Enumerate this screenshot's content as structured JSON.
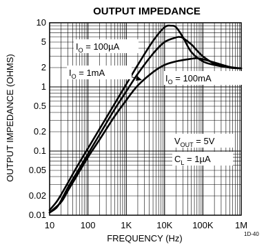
{
  "chart_data": {
    "type": "line",
    "title": "OUTPUT IMPEDANCE",
    "xlabel": "FREQUENCY (Hz)",
    "ylabel": "OUTPUT IMPEDANCE (OHMS)",
    "x_scale": "log",
    "y_scale": "log",
    "xlim": [
      10,
      1000000
    ],
    "ylim": [
      0.01,
      10
    ],
    "grid": true,
    "x_ticks": [
      "10",
      "100",
      "1K",
      "10K",
      "100K",
      "1M"
    ],
    "y_ticks": [
      "10",
      "5",
      "2",
      "1",
      "0.5",
      "0.2",
      "0.1",
      "0.05",
      "0.02",
      "0.01"
    ],
    "series": [
      {
        "name": "IO = 100µA",
        "x": [
          10,
          15,
          20,
          30,
          50,
          100,
          200,
          500,
          1000,
          2000,
          5000,
          10000,
          15000,
          20000,
          30000,
          50000,
          100000,
          200000,
          500000,
          1000000
        ],
        "y": [
          0.012,
          0.016,
          0.021,
          0.032,
          0.055,
          0.11,
          0.22,
          0.55,
          1.1,
          2.2,
          5.2,
          8.5,
          9.0,
          8.5,
          6.0,
          3.5,
          2.5,
          2.2,
          2.0,
          1.95
        ]
      },
      {
        "name": "IO = 1mA",
        "x": [
          10,
          15,
          20,
          30,
          50,
          100,
          200,
          500,
          1000,
          2000,
          5000,
          10000,
          20000,
          25000,
          30000,
          50000,
          70000,
          100000,
          200000,
          500000,
          1000000
        ],
        "y": [
          0.011,
          0.013,
          0.017,
          0.027,
          0.045,
          0.09,
          0.18,
          0.45,
          0.85,
          1.6,
          3.3,
          5.0,
          5.9,
          6.0,
          5.8,
          4.6,
          3.7,
          3.0,
          2.3,
          2.0,
          1.95
        ]
      },
      {
        "name": "IO = 100mA",
        "x": [
          10,
          20,
          30,
          50,
          100,
          200,
          500,
          1000,
          2000,
          5000,
          10000,
          20000,
          50000,
          70000,
          100000,
          200000,
          500000,
          1000000
        ],
        "y": [
          0.011,
          0.016,
          0.024,
          0.04,
          0.08,
          0.15,
          0.35,
          0.62,
          1.05,
          1.7,
          2.2,
          2.5,
          2.75,
          2.8,
          2.7,
          2.4,
          2.05,
          1.95
        ]
      }
    ],
    "annotations": {
      "io_100ua": {
        "main": "I",
        "sub": "O",
        "rest": " = 100µA"
      },
      "io_1ma": {
        "main": "I",
        "sub": "O",
        "rest": " = 1mA"
      },
      "io_100ma": {
        "main": "I",
        "sub": "O",
        "rest": " = 100mA"
      },
      "vout": {
        "main": "V",
        "sub": "OUT",
        "rest": " = 5V"
      },
      "cl": {
        "main": "C",
        "sub": "L",
        "rest": " = 1µA"
      }
    },
    "figure_id": "1D-40"
  }
}
